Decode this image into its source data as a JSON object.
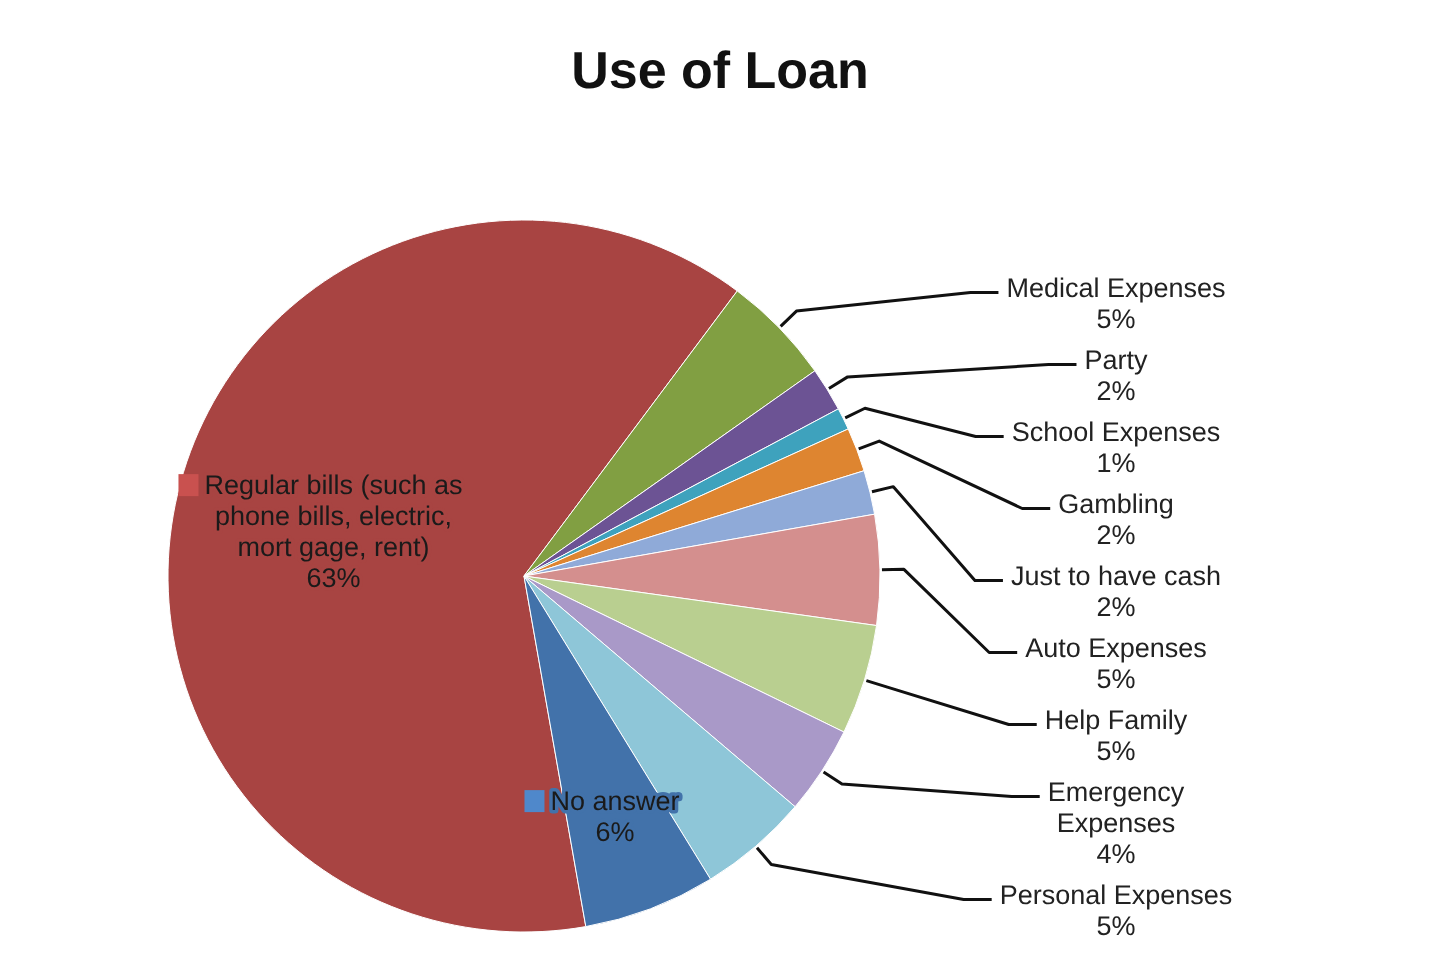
{
  "chart_data": {
    "type": "pie",
    "title": "Use of Loan",
    "categories": [
      "Regular bills (such as phone bills, electric, mort gage, rent)",
      "Medical Expenses",
      "Party",
      "School Expenses",
      "Gambling",
      "Just to have cash",
      "Auto Expenses",
      "Help Family",
      "Emergency Expenses",
      "Personal Expenses",
      "No answer"
    ],
    "values": [
      63,
      5,
      2,
      1,
      2,
      2,
      5,
      5,
      4,
      5,
      6
    ],
    "colors": [
      "#a84442",
      "#819f42",
      "#6c5394",
      "#3ea2bd",
      "#de8530",
      "#8faad8",
      "#d48f8e",
      "#b9cf90",
      "#a999c8",
      "#8ec6d8",
      "#4272aa"
    ],
    "value_labels": [
      "63%",
      "5%",
      "2%",
      "1%",
      "2%",
      "2%",
      "5%",
      "5%",
      "4%",
      "5%",
      "6%"
    ]
  }
}
